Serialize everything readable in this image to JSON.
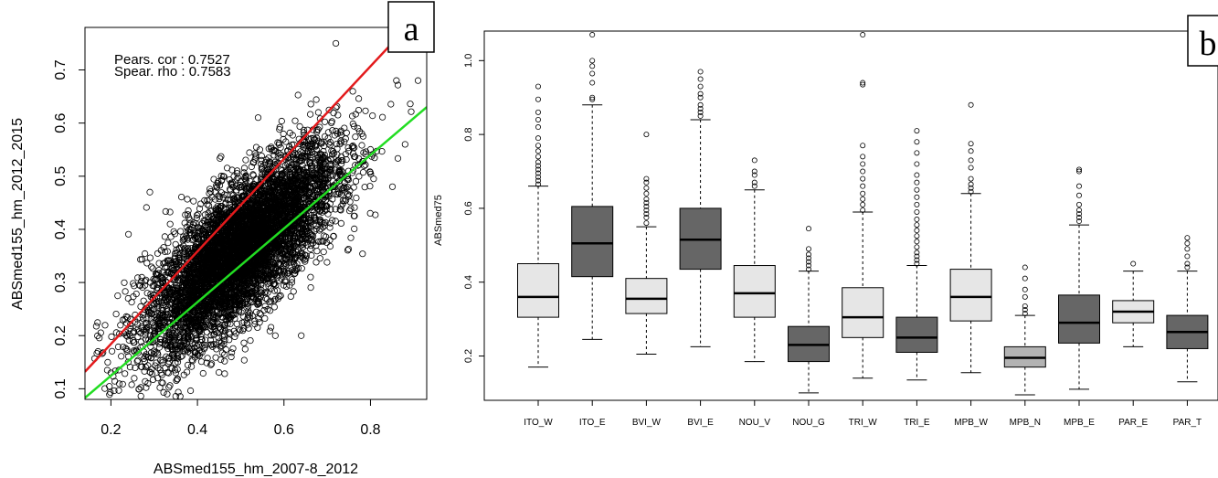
{
  "panels": {
    "a": {
      "label": "a"
    },
    "b": {
      "label": "b"
    }
  },
  "chart_data": [
    {
      "type": "scatter",
      "panel": "a",
      "xlabel": "ABSmed155_hm_2007-8_2012",
      "ylabel": "ABSmed155_hm_2012_2015",
      "xlim": [
        0.14,
        0.93
      ],
      "ylim": [
        0.08,
        0.78
      ],
      "xticks": [
        0.2,
        0.4,
        0.6,
        0.8
      ],
      "xtick_labels": [
        "0.2",
        "0.4",
        "0.6",
        "0.8"
      ],
      "yticks": [
        0.1,
        0.2,
        0.3,
        0.4,
        0.5,
        0.6,
        0.7
      ],
      "ytick_labels": [
        "0.1",
        "0.2",
        "0.3",
        "0.4",
        "0.5",
        "0.6",
        "0.7"
      ],
      "annotations": [
        "Pears. cor : 0.7527",
        "Spear. rho : 0.7583"
      ],
      "points_summary": {
        "count_approx": 6000,
        "x_mean": 0.5,
        "y_mean": 0.36,
        "x_sd": 0.11,
        "y_sd": 0.095,
        "correlation": 0.7527
      },
      "outliers": [
        {
          "x": 0.92,
          "y": 0.75
        },
        {
          "x": 0.72,
          "y": 0.75
        },
        {
          "x": 0.91,
          "y": 0.68
        },
        {
          "x": 0.86,
          "y": 0.68
        },
        {
          "x": 0.78,
          "y": 0.58
        },
        {
          "x": 0.88,
          "y": 0.56
        },
        {
          "x": 0.64,
          "y": 0.2
        },
        {
          "x": 0.58,
          "y": 0.2
        },
        {
          "x": 0.2,
          "y": 0.13
        },
        {
          "x": 0.33,
          "y": 0.09
        },
        {
          "x": 0.46,
          "y": 0.5
        },
        {
          "x": 0.29,
          "y": 0.47
        }
      ],
      "lines": [
        {
          "name": "red",
          "color": "#e31a1c",
          "x": [
            0.14,
            0.93
          ],
          "y": [
            0.132,
            0.82
          ]
        },
        {
          "name": "green",
          "color": "#22dd22",
          "x": [
            0.14,
            0.93
          ],
          "y": [
            0.083,
            0.63
          ]
        }
      ]
    },
    {
      "type": "boxplot",
      "panel": "b",
      "xlabel": "",
      "ylabel": "ABSmed75",
      "ylim": [
        0.08,
        1.08
      ],
      "yticks": [
        0.2,
        0.4,
        0.6,
        0.8,
        1.0
      ],
      "ytick_labels": [
        "0.2",
        "0.4",
        "0.6",
        "0.8",
        "1.0"
      ],
      "categories": [
        "ITO_W",
        "ITO_E",
        "BVI_W",
        "BVI_E",
        "NOU_V",
        "NOU_G",
        "TRI_W",
        "TRI_E",
        "MPB_W",
        "MPB_N",
        "MPB_E",
        "PAR_E",
        "PAR_T"
      ],
      "boxes": [
        {
          "whislo": 0.17,
          "q1": 0.305,
          "med": 0.36,
          "q3": 0.45,
          "whishi": 0.66,
          "color": "#e6e6e6",
          "outliers": [
            0.665,
            0.675,
            0.685,
            0.695,
            0.705,
            0.715,
            0.725,
            0.74,
            0.755,
            0.77,
            0.79,
            0.82,
            0.84,
            0.86,
            0.895,
            0.93
          ]
        },
        {
          "whislo": 0.245,
          "q1": 0.415,
          "med": 0.505,
          "q3": 0.605,
          "whishi": 0.88,
          "color": "#666666",
          "outliers": [
            0.895,
            0.9,
            0.94,
            0.965,
            0.985,
            1.0,
            1.07
          ]
        },
        {
          "whislo": 0.205,
          "q1": 0.315,
          "med": 0.355,
          "q3": 0.41,
          "whishi": 0.55,
          "color": "#e6e6e6",
          "outliers": [
            0.56,
            0.575,
            0.585,
            0.595,
            0.605,
            0.615,
            0.625,
            0.64,
            0.655,
            0.67,
            0.68,
            0.8
          ]
        },
        {
          "whislo": 0.225,
          "q1": 0.435,
          "med": 0.515,
          "q3": 0.6,
          "whishi": 0.84,
          "color": "#666666",
          "outliers": [
            0.85,
            0.86,
            0.87,
            0.88,
            0.9,
            0.91,
            0.93,
            0.95,
            0.97
          ]
        },
        {
          "whislo": 0.185,
          "q1": 0.305,
          "med": 0.37,
          "q3": 0.445,
          "whishi": 0.65,
          "color": "#e6e6e6",
          "outliers": [
            0.66,
            0.67,
            0.69,
            0.7,
            0.73
          ]
        },
        {
          "whislo": 0.1,
          "q1": 0.185,
          "med": 0.23,
          "q3": 0.28,
          "whishi": 0.43,
          "color": "#666666",
          "outliers": [
            0.435,
            0.445,
            0.455,
            0.465,
            0.475,
            0.49,
            0.545
          ]
        },
        {
          "whislo": 0.14,
          "q1": 0.25,
          "med": 0.305,
          "q3": 0.385,
          "whishi": 0.59,
          "color": "#e6e6e6",
          "outliers": [
            0.595,
            0.61,
            0.625,
            0.64,
            0.66,
            0.68,
            0.7,
            0.72,
            0.74,
            0.77,
            0.935,
            0.94,
            1.07
          ]
        },
        {
          "whislo": 0.135,
          "q1": 0.21,
          "med": 0.25,
          "q3": 0.305,
          "whishi": 0.445,
          "color": "#666666",
          "outliers": [
            0.45,
            0.46,
            0.47,
            0.48,
            0.495,
            0.51,
            0.525,
            0.54,
            0.555,
            0.57,
            0.59,
            0.61,
            0.63,
            0.65,
            0.67,
            0.69,
            0.72,
            0.75,
            0.78,
            0.81
          ]
        },
        {
          "whislo": 0.155,
          "q1": 0.295,
          "med": 0.36,
          "q3": 0.435,
          "whishi": 0.64,
          "color": "#e6e6e6",
          "outliers": [
            0.645,
            0.655,
            0.665,
            0.68,
            0.71,
            0.73,
            0.755,
            0.775,
            0.88
          ]
        },
        {
          "whislo": 0.095,
          "q1": 0.17,
          "med": 0.195,
          "q3": 0.225,
          "whishi": 0.31,
          "color": "#b3b3b3",
          "outliers": [
            0.315,
            0.325,
            0.335,
            0.36,
            0.38,
            0.41,
            0.44
          ]
        },
        {
          "whislo": 0.11,
          "q1": 0.235,
          "med": 0.29,
          "q3": 0.365,
          "whishi": 0.555,
          "color": "#666666",
          "outliers": [
            0.565,
            0.575,
            0.585,
            0.595,
            0.61,
            0.635,
            0.66,
            0.7,
            0.705
          ]
        },
        {
          "whislo": 0.225,
          "q1": 0.29,
          "med": 0.32,
          "q3": 0.35,
          "whishi": 0.43,
          "color": "#e6e6e6",
          "outliers": [
            0.45
          ]
        },
        {
          "whislo": 0.13,
          "q1": 0.22,
          "med": 0.265,
          "q3": 0.31,
          "whishi": 0.43,
          "color": "#666666",
          "outliers": [
            0.44,
            0.45,
            0.47,
            0.49,
            0.505,
            0.52
          ]
        }
      ]
    }
  ]
}
